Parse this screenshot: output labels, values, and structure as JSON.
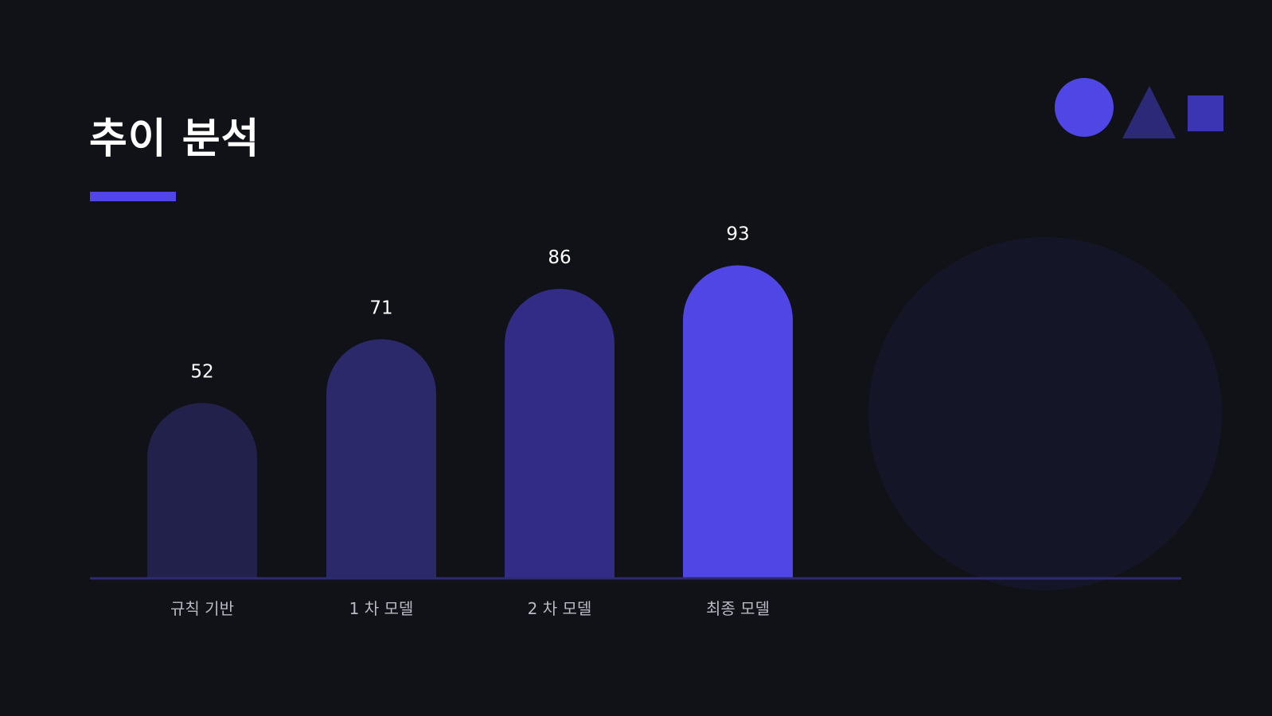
{
  "slide": {
    "title": "추이 분석",
    "accent_color": "#4f46e5"
  },
  "decor": {
    "shape_icons": [
      "circle-icon",
      "triangle-icon",
      "square-icon"
    ],
    "shape_colors": [
      "#4f46e5",
      "#2c2a78",
      "#3b35b4"
    ]
  },
  "chart_data": {
    "type": "bar",
    "title": "",
    "xlabel": "",
    "ylabel": "",
    "categories": [
      "규칙 기반",
      "1 차 모델",
      "2 차 모델",
      "최종 모델"
    ],
    "values": [
      52,
      71,
      86,
      93
    ],
    "data_labels": [
      "52",
      "71",
      "86",
      "93"
    ],
    "ylim": [
      0,
      100
    ],
    "grid": false,
    "legend": "none",
    "bar_colors": [
      "#22214b",
      "#2b296a",
      "#332c87",
      "#4f46e5"
    ],
    "baseline_color": "#2d2a6e"
  }
}
